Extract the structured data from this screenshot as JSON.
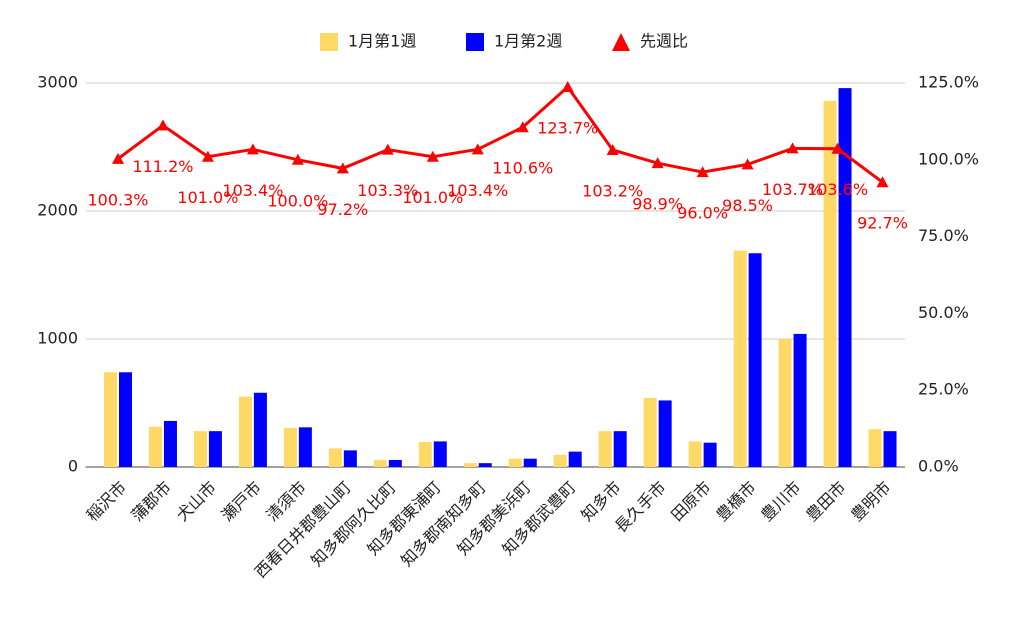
{
  "chart_data": {
    "type": "bar",
    "categories": [
      "稲沢市",
      "蒲郡市",
      "犬山市",
      "瀬戸市",
      "清須市",
      "西春日井郡豊山町",
      "知多郡阿久比町",
      "知多郡東浦町",
      "知多郡南知多町",
      "知多郡美浜町",
      "知多郡武豊町",
      "知多市",
      "長久手市",
      "田原市",
      "豊橋市",
      "豊川市",
      "豊田市",
      "豊明市"
    ],
    "series": [
      {
        "name": "1月第1週",
        "color": "#ffd966",
        "values": [
          740,
          315,
          280,
          550,
          305,
          145,
          55,
          195,
          30,
          65,
          95,
          280,
          540,
          200,
          1690,
          1000,
          2860,
          295
        ]
      },
      {
        "name": "1月第2週",
        "color": "#0000ff",
        "values": [
          740,
          360,
          280,
          580,
          310,
          130,
          55,
          200,
          30,
          65,
          120,
          280,
          520,
          190,
          1670,
          1040,
          2960,
          280
        ]
      },
      {
        "name": "先週比",
        "color": "#ff0000",
        "type": "line",
        "axis": "y2",
        "values": [
          100.3,
          111.2,
          101.0,
          103.4,
          100.0,
          97.2,
          103.3,
          101.0,
          103.4,
          110.6,
          123.7,
          103.2,
          98.9,
          96.0,
          98.5,
          103.7,
          103.6,
          92.7
        ],
        "value_labels": [
          "100.3%",
          "111.2%",
          "101.0%",
          "103.4%",
          "100.0%",
          "97.2%",
          "103.3%",
          "101.0%",
          "103.4%",
          "110.6%",
          "123.7%",
          "103.2%",
          "98.9%",
          "96.0%",
          "98.5%",
          "103.7%",
          "103.6%",
          "92.7%"
        ]
      }
    ],
    "ylim": [
      0,
      3000
    ],
    "yticks": [
      0,
      1000,
      2000,
      3000
    ],
    "y2lim": [
      0,
      125
    ],
    "y2ticks": [
      {
        "value": 0,
        "label": "0.0%"
      },
      {
        "value": 25,
        "label": "25.0%"
      },
      {
        "value": 50,
        "label": "50.0%"
      },
      {
        "value": 75,
        "label": "75.0%"
      },
      {
        "value": 100,
        "label": "100.0%"
      },
      {
        "value": 125,
        "label": "125.0%"
      }
    ],
    "grid": true,
    "legend": "top"
  }
}
